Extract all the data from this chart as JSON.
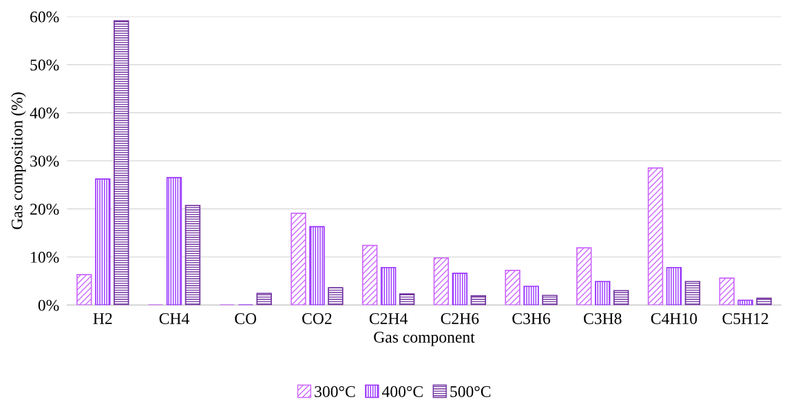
{
  "chart_data": {
    "type": "bar",
    "xlabel": "Gas component",
    "ylabel": "Gas composition (%)",
    "categories": [
      "H2",
      "CH4",
      "CO",
      "CO2",
      "C2H4",
      "C2H6",
      "C3H6",
      "C3H8",
      "C4H10",
      "C5H12"
    ],
    "series": [
      {
        "name": "300°C",
        "color": "#cc66ff",
        "values": [
          6.3,
          0,
          0,
          19.1,
          12.4,
          9.8,
          7.2,
          11.9,
          28.5,
          5.6
        ]
      },
      {
        "name": "400°C",
        "color": "#9933ff",
        "values": [
          26.2,
          26.5,
          0,
          16.3,
          7.8,
          6.6,
          3.9,
          4.9,
          7.8,
          1.0
        ]
      },
      {
        "name": "500°C",
        "color": "#7030a0",
        "values": [
          59.1,
          20.7,
          2.4,
          3.6,
          2.3,
          1.9,
          2.0,
          3.0,
          4.9,
          1.4
        ]
      }
    ],
    "ylim": [
      0,
      60
    ],
    "yticks": [
      {
        "value": 0,
        "label": "0%"
      },
      {
        "value": 10,
        "label": "10%"
      },
      {
        "value": 20,
        "label": "20%"
      },
      {
        "value": 30,
        "label": "30%"
      },
      {
        "value": 40,
        "label": "40%"
      },
      {
        "value": 50,
        "label": "50%"
      },
      {
        "value": 60,
        "label": "60%"
      }
    ],
    "grid": "y",
    "legend": "bottom"
  }
}
